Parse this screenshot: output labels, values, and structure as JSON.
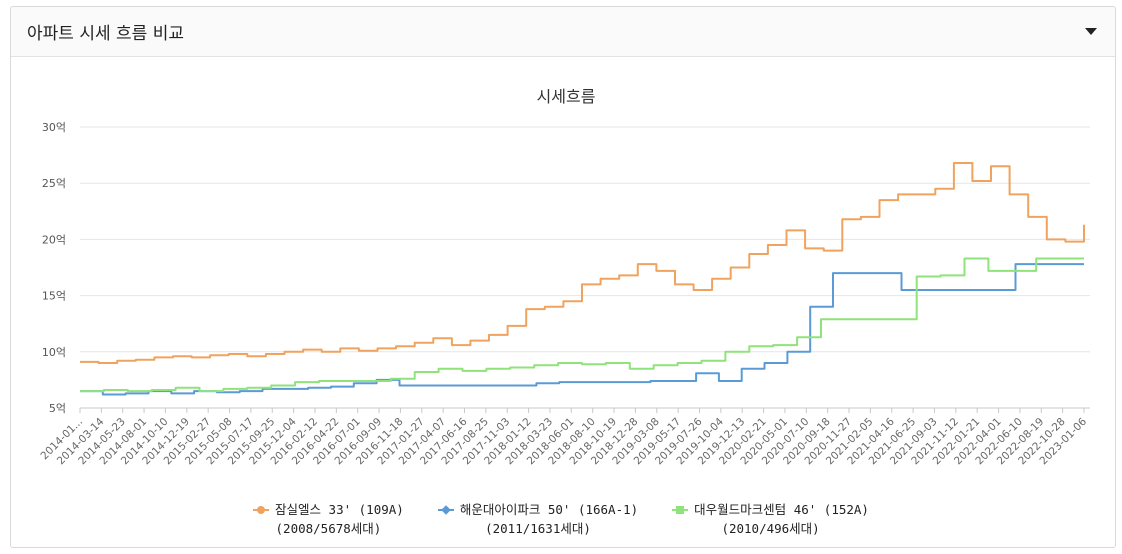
{
  "panel": {
    "title": "아파트 시세 흐름 비교",
    "toggle_icon": "caret-down-icon"
  },
  "chart_data": {
    "type": "line",
    "title": "시세흐름",
    "ylim": [
      5,
      30
    ],
    "yticks": [
      5,
      10,
      15,
      20,
      25,
      30
    ],
    "ytick_labels": [
      "5억",
      "10억",
      "15억",
      "20억",
      "25억",
      "30억"
    ],
    "xtick_labels": [
      "2014-01...",
      "2014-03-14",
      "2014-05-23",
      "2014-08-01",
      "2014-10-10",
      "2014-12-19",
      "2015-02-27",
      "2015-05-08",
      "2015-07-17",
      "2015-09-25",
      "2015-12-04",
      "2016-02-12",
      "2016-04-22",
      "2016-07-01",
      "2016-09-09",
      "2016-11-18",
      "2017-01-27",
      "2017-04-07",
      "2017-06-16",
      "2017-08-25",
      "2017-11-03",
      "2018-01-12",
      "2018-03-23",
      "2018-06-01",
      "2018-08-10",
      "2018-10-19",
      "2018-12-28",
      "2019-03-08",
      "2019-05-17",
      "2019-07-26",
      "2019-10-04",
      "2019-12-13",
      "2020-02-21",
      "2020-05-01",
      "2020-07-10",
      "2020-09-18",
      "2020-11-27",
      "2021-02-05",
      "2021-04-16",
      "2021-06-25",
      "2021-09-03",
      "2021-11-12",
      "2022-01-21",
      "2022-04-01",
      "2022-06-10",
      "2022-08-19",
      "2022-10-28",
      "2023-01-06"
    ],
    "grid": "horizontal",
    "legend_position": "bottom",
    "series": [
      {
        "name": "잠실엘스 33' (109A)",
        "sub": "(2008/5678세대)",
        "color": "#f0a35e",
        "marker": "circle",
        "values": [
          9.1,
          9.0,
          9.2,
          9.3,
          9.5,
          9.6,
          9.5,
          9.7,
          9.8,
          9.6,
          9.8,
          10.0,
          10.2,
          10.0,
          10.3,
          10.1,
          10.3,
          10.5,
          10.8,
          11.2,
          10.6,
          11.0,
          11.5,
          12.3,
          13.8,
          14.0,
          14.5,
          16.0,
          16.5,
          16.8,
          17.8,
          17.2,
          16.0,
          15.5,
          16.5,
          17.5,
          18.7,
          19.5,
          20.8,
          19.2,
          19.0,
          21.8,
          22.0,
          23.5,
          24.0,
          24.0,
          24.5,
          26.8,
          25.2,
          26.5,
          24.0,
          22.0,
          20.0,
          19.8,
          21.3
        ]
      },
      {
        "name": "해운대아이파크 50' (166A-1)",
        "sub": "(2011/1631세대)",
        "color": "#5b9bd5",
        "marker": "diamond",
        "values": [
          6.5,
          6.2,
          6.3,
          6.5,
          6.3,
          6.5,
          6.4,
          6.5,
          6.7,
          6.7,
          6.8,
          6.9,
          7.2,
          7.5,
          7.0,
          7.0,
          7.0,
          7.0,
          7.0,
          7.0,
          7.2,
          7.3,
          7.3,
          7.3,
          7.3,
          7.4,
          7.4,
          8.1,
          7.4,
          8.5,
          9.0,
          10.0,
          14.0,
          17.0,
          17.0,
          17.0,
          15.5,
          15.5,
          15.5,
          15.5,
          15.5,
          17.8,
          17.8,
          17.8,
          17.8
        ]
      },
      {
        "name": "대우월드마크센텀 46' (152A)",
        "sub": "(2010/496세대)",
        "color": "#8fe37a",
        "marker": "square",
        "values": [
          6.5,
          6.6,
          6.5,
          6.6,
          6.8,
          6.5,
          6.7,
          6.8,
          7.0,
          7.3,
          7.4,
          7.4,
          7.4,
          7.6,
          8.2,
          8.5,
          8.3,
          8.5,
          8.6,
          8.8,
          9.0,
          8.9,
          9.0,
          8.5,
          8.8,
          9.0,
          9.2,
          10.0,
          10.5,
          10.6,
          11.3,
          12.9,
          12.9,
          12.9,
          12.9,
          16.7,
          16.8,
          18.3,
          17.2,
          17.2,
          18.3,
          18.3,
          18.3
        ]
      }
    ]
  }
}
